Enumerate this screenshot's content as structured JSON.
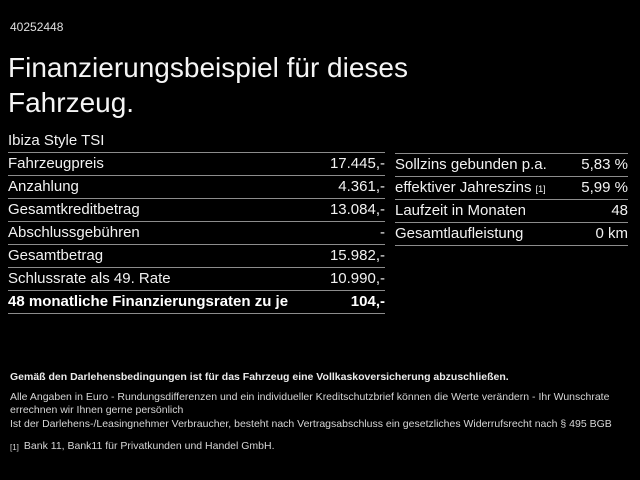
{
  "page": {
    "id_number": "40252448",
    "title_line1": "Finanzierungsbeispiel für dieses",
    "title_line2": "Fahrzeug."
  },
  "left_table": {
    "header": "Ibiza Style TSI",
    "rows": [
      {
        "label": "Fahrzeugpreis",
        "value": "17.445,-"
      },
      {
        "label": "Anzahlung",
        "value": "4.361,-"
      },
      {
        "label": "Gesamtkreditbetrag",
        "value": "13.084,-"
      },
      {
        "label": "Abschlussgebühren",
        "value": "-"
      },
      {
        "label": "Gesamtbetrag",
        "value": "15.982,-"
      },
      {
        "label": "Schlussrate als 49. Rate",
        "value": "10.990,-"
      }
    ],
    "total_row": {
      "label": "48 monatliche Finanzierungsraten zu je",
      "value": "104,-"
    }
  },
  "right_table": {
    "rows": [
      {
        "label": "Sollzins gebunden p.a.",
        "sup": "",
        "value": "5,83 %"
      },
      {
        "label": "effektiver Jahreszins",
        "sup": "[1]",
        "value": "5,99 %"
      },
      {
        "label": "Laufzeit in Monaten",
        "sup": "",
        "value": "48"
      },
      {
        "label": "Gesamtlaufleistung",
        "sup": "",
        "value": "0 km"
      }
    ]
  },
  "footer": {
    "bold_note": "Gemäß den Darlehensbedingungen ist für das Fahrzeug eine Vollkaskoversicherung abzuschließen.",
    "note_line1": "Alle Angaben in Euro - Rundungsdifferenzen und ein individueller Kreditschutzbrief können die Werte verändern - Ihr Wunschrate errechnen wir Ihnen gerne persönlich",
    "note_line2": "Ist der Darlehens-/Leasingnehmer Verbraucher, besteht nach Vertragsabschluss ein gesetzliches Widerrufsrecht nach § 495 BGB",
    "footnote_marker": "[1]",
    "footnote_text": "Bank 11, Bank11 für Privatkunden und Handel GmbH."
  },
  "colors": {
    "background": "#000000",
    "text": "#f2f2f2",
    "divider": "#8c8c8c"
  }
}
